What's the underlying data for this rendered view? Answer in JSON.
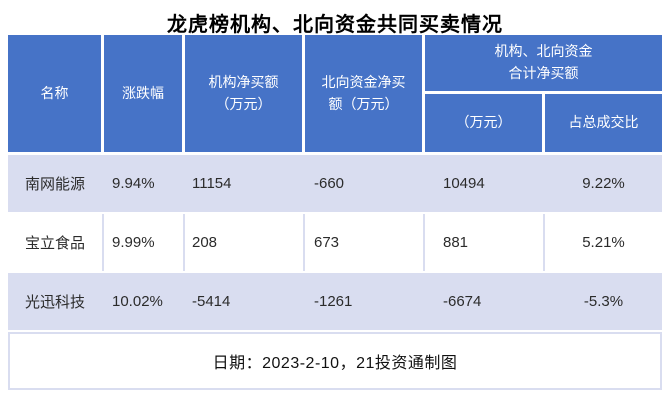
{
  "title": "龙虎榜机构、北向资金共同买卖情况",
  "colors": {
    "header_bg": "#4673C7",
    "row_alt_bg": "#D9DDF0",
    "header_text": "#ffffff",
    "body_text": "#2b2b2b"
  },
  "table": {
    "headers": {
      "name": "名称",
      "change": "涨跌幅",
      "inst_net_buy": "机构净买额\n（万元）",
      "north_net_buy": "北向资金净买\n额（万元）",
      "combined_group": "机构、北向资金\n合计净买额",
      "combined_amount": "（万元）",
      "combined_ratio": "占总成交比"
    },
    "rows": [
      {
        "name": "南网能源",
        "change": "9.94%",
        "inst": "11154",
        "north": "-660",
        "total": "10494",
        "ratio": "9.22%"
      },
      {
        "name": "宝立食品",
        "change": "9.99%",
        "inst": "208",
        "north": "673",
        "total": "881",
        "ratio": "5.21%"
      },
      {
        "name": "光迅科技",
        "change": "10.02%",
        "inst": "-5414",
        "north": "-1261",
        "total": "-6674",
        "ratio": "-5.3%"
      }
    ]
  },
  "footer": {
    "note": "日期：2023-2-10，21投资通制图"
  },
  "chart_data": {
    "type": "table",
    "title": "龙虎榜机构、北向资金共同买卖情况",
    "columns": [
      "名称",
      "涨跌幅",
      "机构净买额（万元）",
      "北向资金净买额（万元）",
      "机构、北向资金合计净买额（万元）",
      "机构、北向资金合计净买额占总成交比"
    ],
    "rows": [
      [
        "南网能源",
        "9.94%",
        11154,
        -660,
        10494,
        "9.22%"
      ],
      [
        "宝立食品",
        "9.99%",
        208,
        673,
        881,
        "5.21%"
      ],
      [
        "光迅科技",
        "10.02%",
        -5414,
        -1261,
        -6674,
        "-5.3%"
      ]
    ],
    "footnote": "日期：2023-2-10，21投资通制图"
  }
}
